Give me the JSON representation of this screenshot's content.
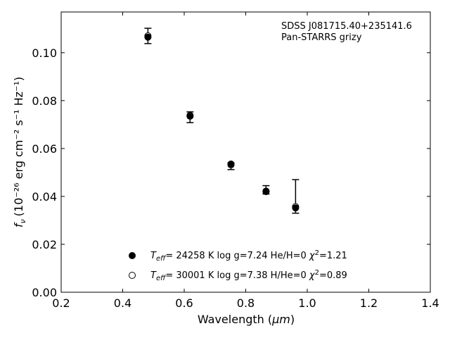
{
  "chart_data": {
    "type": "scatter",
    "xlabel_main": "Wavelength (",
    "xlabel_unit": "μm",
    "xlabel_close": ")",
    "ylabel_prefix": "f",
    "ylabel_sub": "ν",
    "ylabel_unit": "(10⁻²⁶ erg cm⁻² s⁻¹ Hz⁻¹)",
    "xlim": [
      0.2,
      1.4
    ],
    "ylim": [
      0.0,
      0.117
    ],
    "xticks": [
      0.2,
      0.4,
      0.6,
      0.8,
      1.0,
      1.2,
      1.4
    ],
    "xtick_labels": [
      "0.2",
      "0.4",
      "0.6",
      "0.8",
      "1.0",
      "1.2",
      "1.4"
    ],
    "yticks": [
      0.0,
      0.02,
      0.04,
      0.06,
      0.08,
      0.1
    ],
    "ytick_labels": [
      "0.00",
      "0.02",
      "0.04",
      "0.06",
      "0.08",
      "0.10"
    ],
    "annotation": [
      "SDSS J081715.40+235141.6",
      "Pan-STARRS grizy"
    ],
    "observed": {
      "x": [
        0.482,
        0.619,
        0.752,
        0.866,
        0.962
      ],
      "y": [
        0.1065,
        0.0733,
        0.053,
        0.042,
        0.0355
      ],
      "err_low": [
        0.0027,
        0.0025,
        0.0018,
        0.001,
        0.0025
      ],
      "err_high": [
        0.0037,
        0.002,
        0.001,
        0.0025,
        0.0115
      ]
    },
    "series": [
      {
        "marker": "filled",
        "legend": "T_eff= 24258 K  log g=7.24  He/H=0  χ²=1.21",
        "legend_parts": {
          "t": "T",
          "sub": "eff",
          "rest": "= 24258 K  log g=7.24  He/H=0  ",
          "chi": "χ",
          "sup": "2",
          "tail": "=1.21"
        },
        "x": [
          0.482,
          0.619,
          0.752,
          0.866,
          0.962
        ],
        "y": [
          0.1065,
          0.0735,
          0.0535,
          0.042,
          0.0352
        ]
      },
      {
        "marker": "open",
        "legend": "T_eff= 30001 K  log g=7.38  H/He=0  χ²=0.89",
        "legend_parts": {
          "t": "T",
          "sub": "eff",
          "rest": "= 30001 K  log g=7.38  H/He=0  ",
          "chi": "χ",
          "sup": "2",
          "tail": "=0.89"
        },
        "x": [
          0.482,
          0.619,
          0.752,
          0.866,
          0.962
        ],
        "y": [
          0.107,
          0.0738,
          0.0532,
          0.0422,
          0.0357
        ]
      }
    ],
    "legend_position": "lower-center",
    "grid": false
  }
}
